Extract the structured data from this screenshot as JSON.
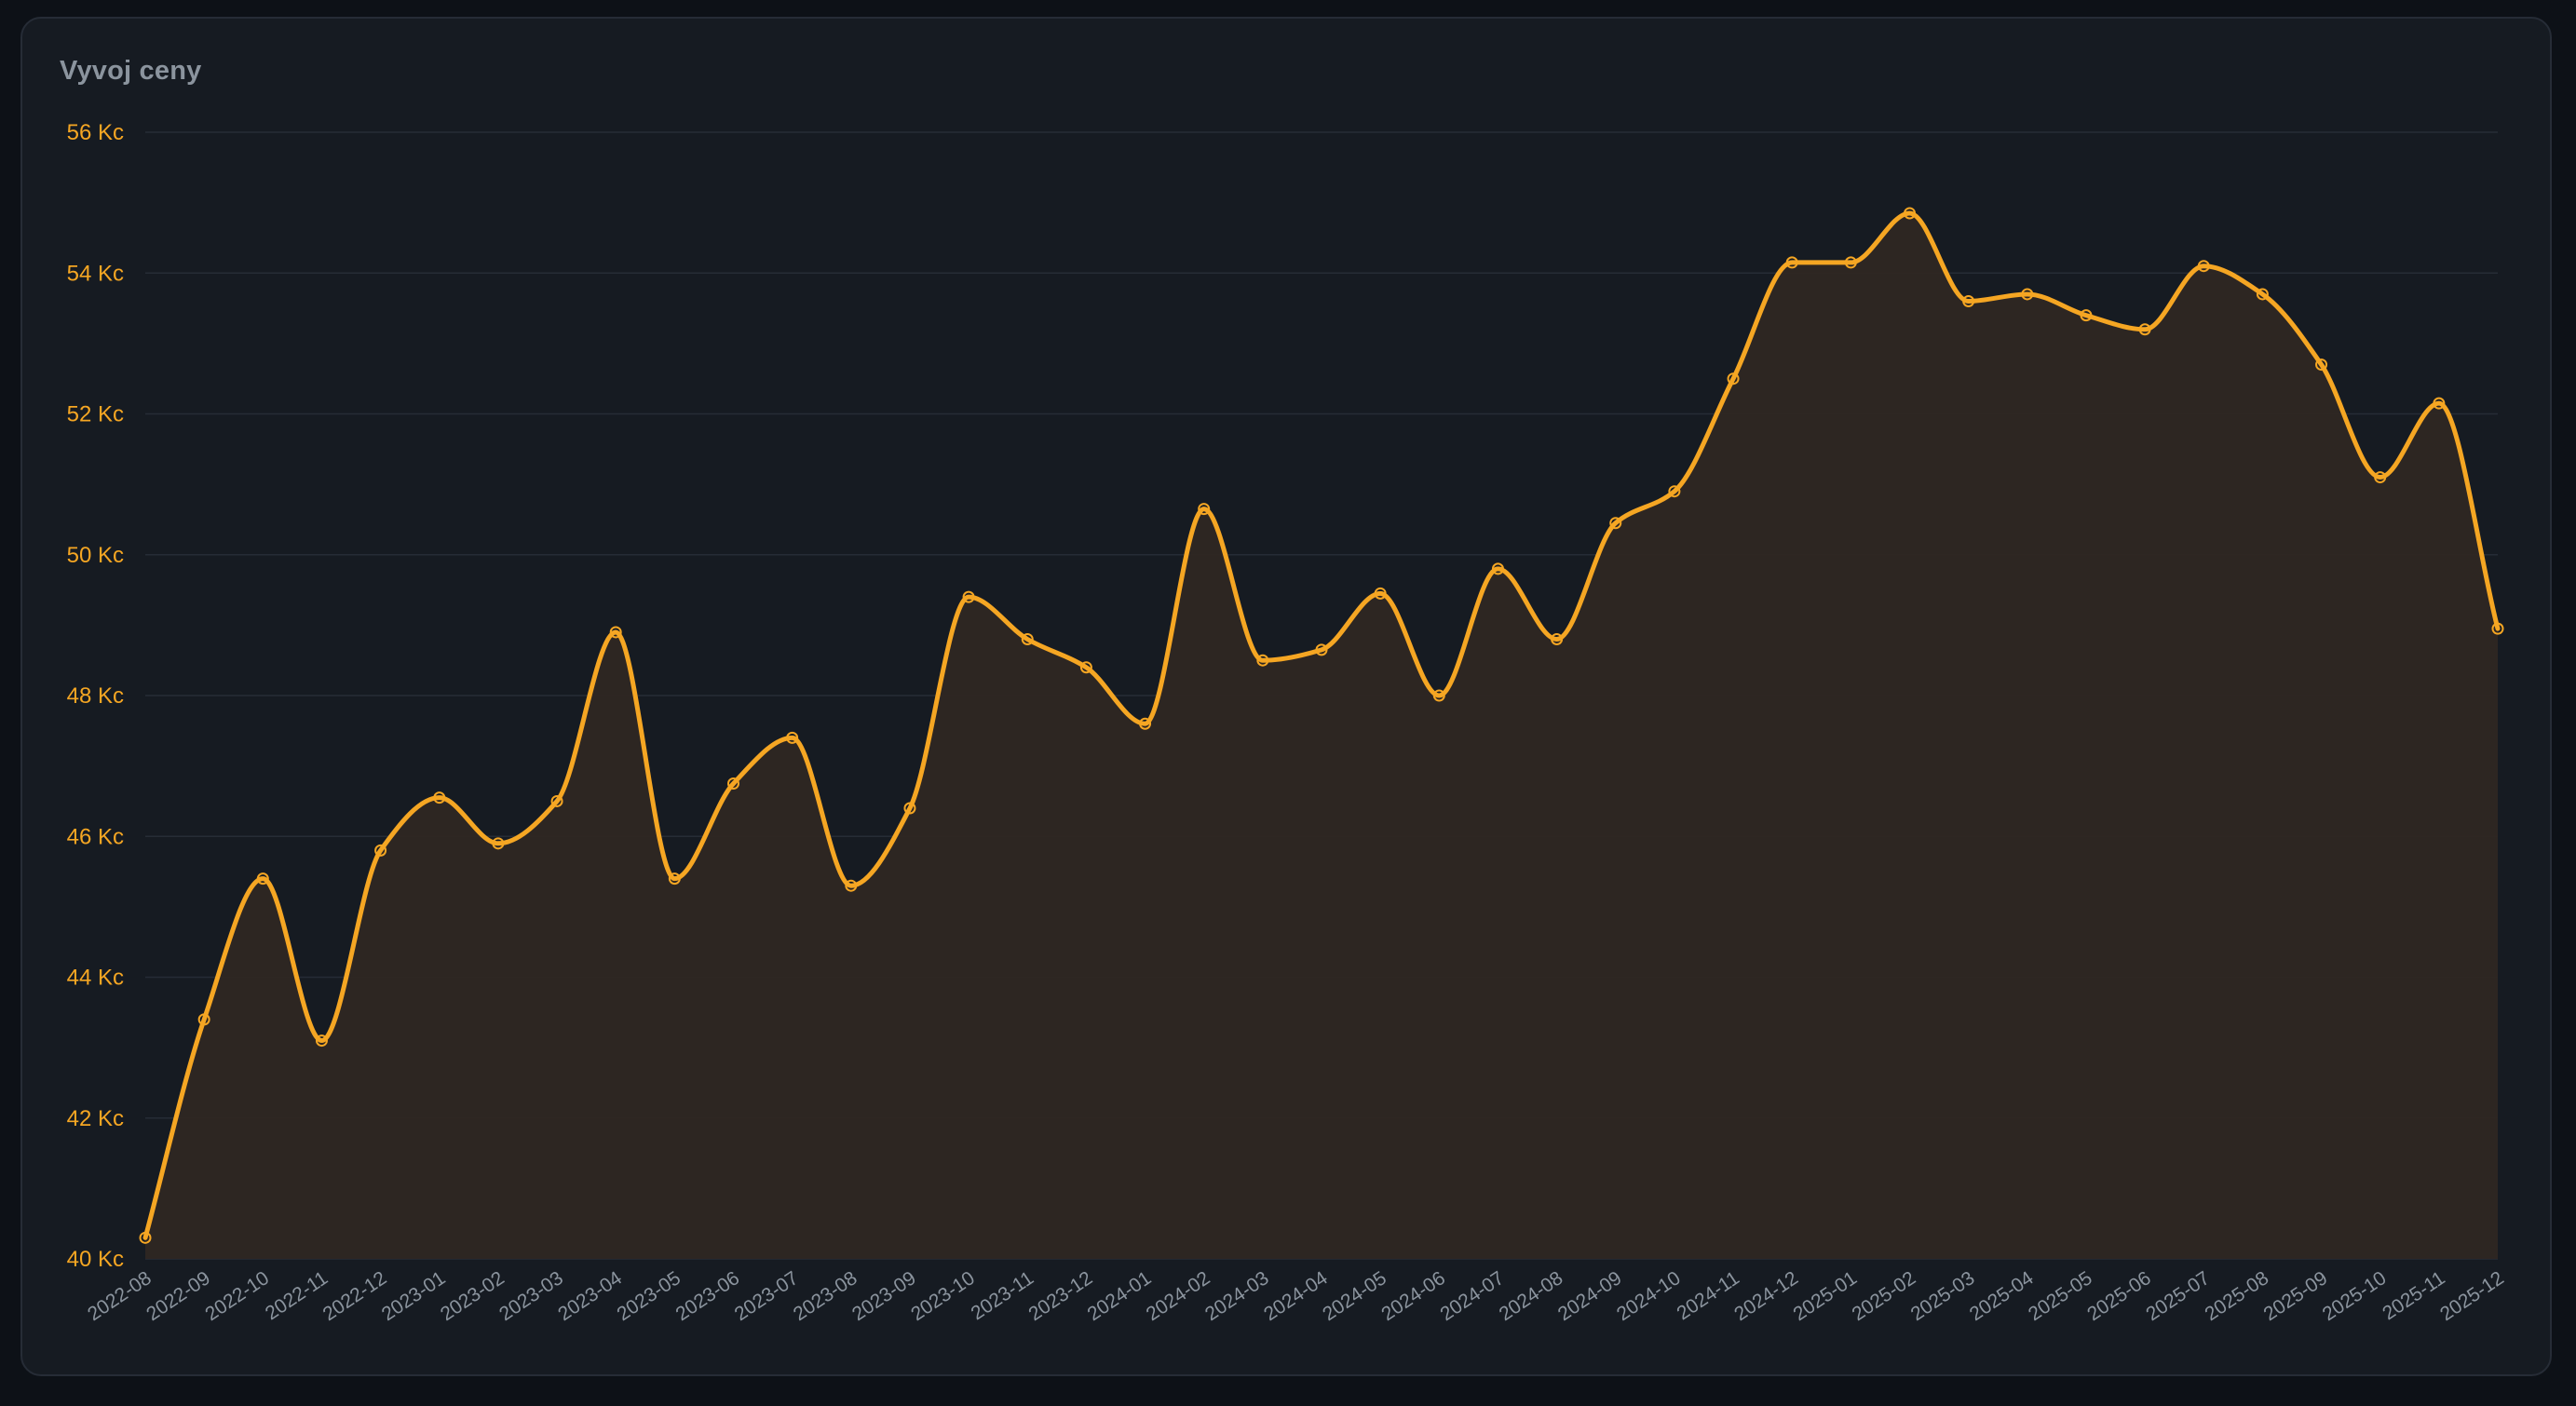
{
  "card": {
    "title": "Vyvoj ceny"
  },
  "colors": {
    "background": "#0d1117",
    "card": "#161b22",
    "line": "#f5a623",
    "area": "#2e2723",
    "grid": "#262c36",
    "ytick": "#f5a623",
    "xtick": "#8b949e"
  },
  "chart_data": {
    "type": "area",
    "title": "Vyvoj ceny",
    "unit": "Kc",
    "ylim": [
      40,
      56
    ],
    "yticks": [
      {
        "value": 40,
        "label": "40 Kc"
      },
      {
        "value": 42,
        "label": "42 Kc"
      },
      {
        "value": 44,
        "label": "44 Kc"
      },
      {
        "value": 46,
        "label": "46 Kc"
      },
      {
        "value": 48,
        "label": "48 Kc"
      },
      {
        "value": 50,
        "label": "50 Kc"
      },
      {
        "value": 52,
        "label": "52 Kc"
      },
      {
        "value": 54,
        "label": "54 Kc"
      },
      {
        "value": 56,
        "label": "56 Kc"
      }
    ],
    "grid": true,
    "smooth": true,
    "markers": true,
    "x": [
      "2022-08",
      "2022-09",
      "2022-10",
      "2022-11",
      "2022-12",
      "2023-01",
      "2023-02",
      "2023-03",
      "2023-04",
      "2023-05",
      "2023-06",
      "2023-07",
      "2023-08",
      "2023-09",
      "2023-10",
      "2023-11",
      "2023-12",
      "2024-01",
      "2024-02",
      "2024-03",
      "2024-04",
      "2024-05",
      "2024-06",
      "2024-07",
      "2024-08",
      "2024-09",
      "2024-10",
      "2024-11",
      "2024-12",
      "2025-01",
      "2025-02",
      "2025-03",
      "2025-04",
      "2025-05",
      "2025-06",
      "2025-07",
      "2025-08",
      "2025-09",
      "2025-10",
      "2025-11",
      "2025-12"
    ],
    "y": [
      40.3,
      43.4,
      45.4,
      43.1,
      45.8,
      46.55,
      45.9,
      46.5,
      48.9,
      45.4,
      46.75,
      47.4,
      45.3,
      46.4,
      49.4,
      48.8,
      48.4,
      47.6,
      50.65,
      48.5,
      48.65,
      49.45,
      48.0,
      49.8,
      48.8,
      50.45,
      50.9,
      52.5,
      54.15,
      54.15,
      54.85,
      53.6,
      53.7,
      53.4,
      53.2,
      54.1,
      53.7,
      52.7,
      51.1,
      52.15,
      48.95
    ]
  }
}
